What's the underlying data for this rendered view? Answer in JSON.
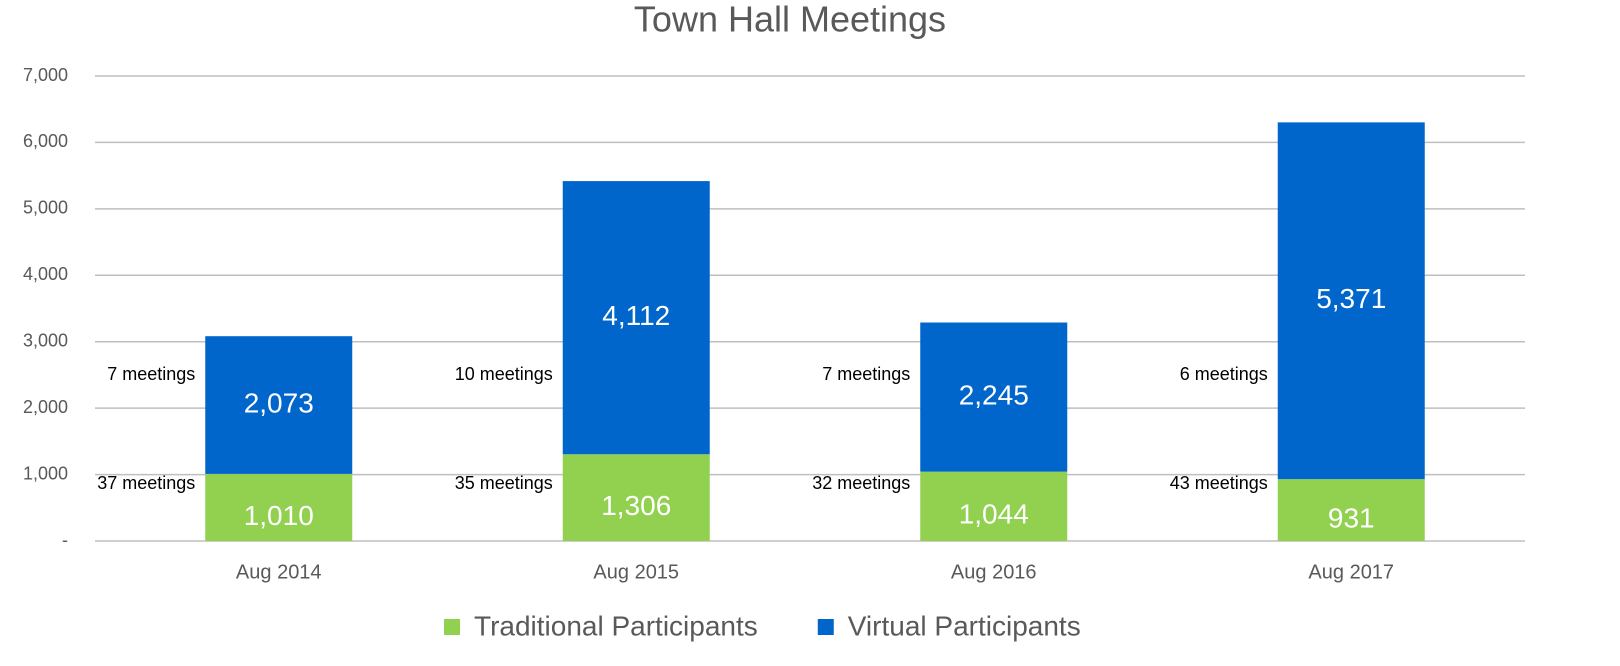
{
  "chart_data": {
    "type": "stacked_bar",
    "title": "Town Hall Meetings",
    "categories": [
      "Aug 2014",
      "Aug 2015",
      "Aug 2016",
      "Aug 2017"
    ],
    "series": [
      {
        "name": "Traditional Participants",
        "color": "#92d050",
        "values": [
          1010,
          1306,
          1044,
          931
        ],
        "value_labels": [
          "1,010",
          "1,306",
          "1,044",
          "931"
        ],
        "annotations": [
          "37 meetings",
          "35 meetings",
          "32 meetings",
          "43 meetings"
        ]
      },
      {
        "name": "Virtual Participants",
        "color": "#0066cc",
        "values": [
          2073,
          4112,
          2245,
          5371
        ],
        "value_labels": [
          "2,073",
          "4,112",
          "2,245",
          "5,371"
        ],
        "annotations": [
          "7 meetings",
          "10 meetings",
          "7 meetings",
          "6 meetings"
        ]
      }
    ],
    "ylim": [
      0,
      7000
    ],
    "yticks": [
      {
        "value": 0,
        "label": "-"
      },
      {
        "value": 1000,
        "label": "1,000"
      },
      {
        "value": 2000,
        "label": "2,000"
      },
      {
        "value": 3000,
        "label": "3,000"
      },
      {
        "value": 4000,
        "label": "4,000"
      },
      {
        "value": 5000,
        "label": "5,000"
      },
      {
        "value": 6000,
        "label": "6,000"
      },
      {
        "value": 7000,
        "label": "7,000"
      }
    ],
    "grid": true,
    "legend": "bottom"
  }
}
